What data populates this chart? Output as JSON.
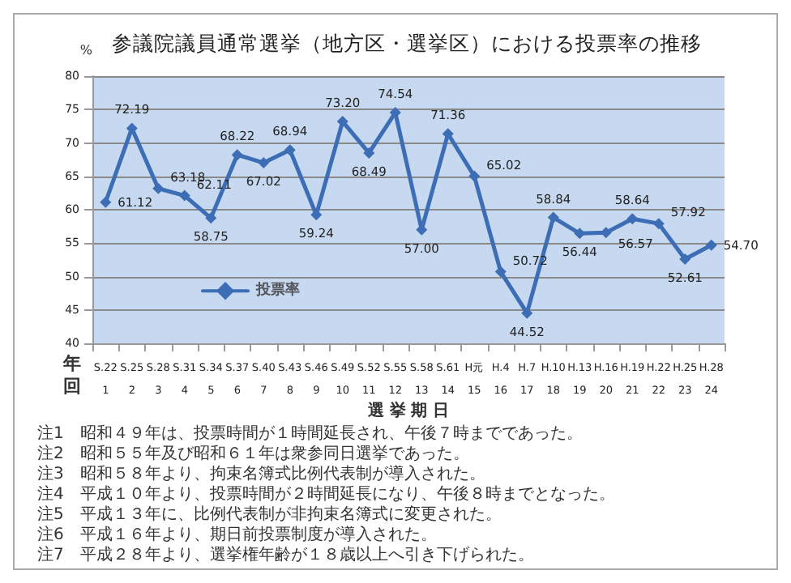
{
  "chart_data": {
    "type": "line",
    "title": "参議院議員通常選挙（地方区・選挙区）における投票率の推移",
    "xlabel": "選 挙 期 日",
    "ylabel": "%",
    "categories": [
      "S.22\n1",
      "S.25\n2",
      "S.28\n3",
      "S.31\n4",
      "S.34\n5",
      "S.37\n6",
      "S.40\n7",
      "S.43\n8",
      "S.46\n9",
      "S.49\n10",
      "S.52\n11",
      "S.55\n12",
      "S.58\n13",
      "S.61\n14",
      "H元\n15",
      "H.4\n16",
      "H.7\n17",
      "H.10\n18",
      "H.13\n19",
      "H.16\n20",
      "H.19\n21",
      "H.22\n22",
      "H.25\n23",
      "H.28\n24"
    ],
    "series": [
      {
        "name": "投票率",
        "color": "#3d6eb5",
        "values": [
          61.12,
          72.19,
          63.18,
          62.11,
          58.75,
          68.22,
          67.02,
          68.94,
          59.24,
          73.2,
          68.49,
          74.54,
          57.0,
          71.36,
          65.02,
          50.72,
          44.52,
          58.84,
          56.44,
          56.57,
          58.64,
          57.92,
          52.61,
          54.7
        ],
        "value_labels": [
          "61.12",
          "72.19",
          "63.18",
          "62.11",
          "58.75",
          "68.22",
          "67.02",
          "68.94",
          "59.24",
          "73.20",
          "68.49",
          "74.54",
          "57.00",
          "71.36",
          "65.02",
          "50.72",
          "44.52",
          "58.84",
          "56.44",
          "56.57",
          "58.64",
          "57.92",
          "52.61",
          "54.70"
        ]
      }
    ],
    "ylim": [
      40,
      80
    ],
    "yticks": [
      40,
      45,
      50,
      55,
      60,
      65,
      70,
      75,
      80
    ],
    "grid": "y",
    "legend": "left",
    "marker": "diamond",
    "line_style": "solid",
    "annotations": [
      "年",
      "回",
      "注1　昭和４９年は、投票時間が１時間延長され、午後７時までであった。",
      "注2　昭和５５年及び昭和６１年は衆参同日選挙であった。",
      "注3　昭和５８年より、拘束名簿式比例代表制が導入された。",
      "注4　平成１０年より、投票時間が２時間延長になり、午後８時までとなった。",
      "注5　平成１３年に、比例代表制が非拘束名簿式に変更された。",
      "注6　平成１６年より、期日前投票制度が導入された。",
      "注7　平成２８年より、選挙権年齢が１８歳以上へ引き下げられた。"
    ]
  }
}
